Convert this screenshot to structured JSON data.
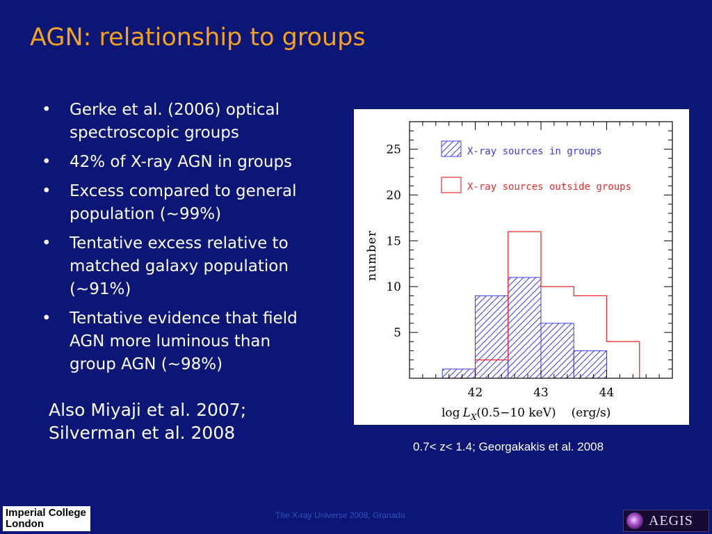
{
  "slide": {
    "title": "AGN: relationship to groups",
    "bullet_glyph": "•",
    "bullets": [
      {
        "lines": [
          "Gerke et al. (2006) optical",
          "spectroscopic groups"
        ]
      },
      {
        "lines": [
          "42% of X-ray AGN in groups"
        ]
      },
      {
        "lines": [
          "Excess compared to general",
          "population (~99%)"
        ]
      },
      {
        "lines": [
          "Tentative excess relative to",
          "matched galaxy population",
          "(~91%)"
        ]
      },
      {
        "lines": [
          "Tentative evidence that field",
          "AGN more luminous than",
          "group AGN (~98%)"
        ]
      }
    ],
    "also": [
      "Also Miyaji et al. 2007;",
      "Silverman et al. 2008"
    ],
    "caption": "0.7< z< 1.4; Georgakakis et al. 2008",
    "footer": "The X-ray Universe 2008, Granada",
    "logo_left": [
      "Imperial College",
      "London"
    ],
    "logo_right": "AEGIS"
  },
  "chart_data": {
    "type": "bar",
    "title": "",
    "xlabel": "log L_X(0.5−10 keV)   (erg/s)",
    "xlabel_parts": {
      "log": "log",
      "L": "L",
      "sub": "X",
      "range": "(0.5−10 keV)",
      "units": "(erg/s)"
    },
    "ylabel": "number",
    "xlim": [
      41.0,
      45.0
    ],
    "ylim": [
      0,
      28
    ],
    "x_ticks": [
      42,
      43,
      44
    ],
    "y_ticks": [
      5,
      10,
      15,
      20,
      25
    ],
    "bin_edges": [
      41.5,
      42.0,
      42.5,
      43.0,
      43.5,
      44.0,
      44.5
    ],
    "series": [
      {
        "name": "X-ray sources in groups",
        "style": "hatched",
        "color": "#3a3ae8",
        "values": [
          1,
          9,
          11,
          6,
          3,
          0
        ]
      },
      {
        "name": "X-ray sources outside groups",
        "style": "outline",
        "color": "#ee2828",
        "values": [
          0,
          2,
          16,
          10,
          9,
          4
        ]
      }
    ],
    "legend": "top-left",
    "grid": false
  }
}
